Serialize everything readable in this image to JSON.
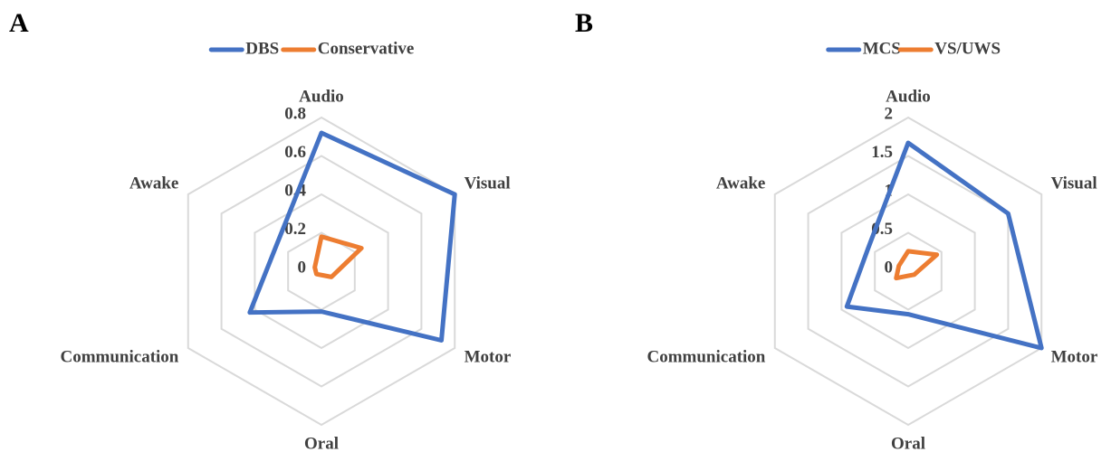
{
  "chart_data": [
    {
      "type": "radar",
      "panel_label": "A",
      "categories": [
        "Audio",
        "Visual",
        "Motor",
        "Oral",
        "Communication",
        "Awake"
      ],
      "series": [
        {
          "name": "DBS",
          "color": "#4472c4",
          "values": [
            0.72,
            0.8,
            0.72,
            0.21,
            0.43,
            0.27
          ]
        },
        {
          "name": "Conservative",
          "color": "#ed7d31",
          "values": [
            0.18,
            0.24,
            0.06,
            0.02,
            0.03,
            0.04
          ]
        }
      ],
      "ylim": [
        0,
        0.8
      ],
      "yticks": [
        0,
        0.2,
        0.4,
        0.6,
        0.8
      ],
      "grid": true,
      "legend": "top"
    },
    {
      "type": "radar",
      "panel_label": "B",
      "categories": [
        "Audio",
        "Visual",
        "Motor",
        "Oral",
        "Communication",
        "Awake"
      ],
      "series": [
        {
          "name": "MCS",
          "color": "#4472c4",
          "values": [
            1.67,
            1.5,
            2.0,
            0.56,
            0.92,
            0.6
          ]
        },
        {
          "name": "VS/UWS",
          "color": "#ed7d31",
          "values": [
            0.26,
            0.43,
            0.09,
            0.06,
            0.18,
            0.14
          ]
        }
      ],
      "ylim": [
        0,
        2
      ],
      "yticks": [
        0,
        0.5,
        1,
        1.5,
        2
      ],
      "grid": true,
      "legend": "top"
    }
  ]
}
